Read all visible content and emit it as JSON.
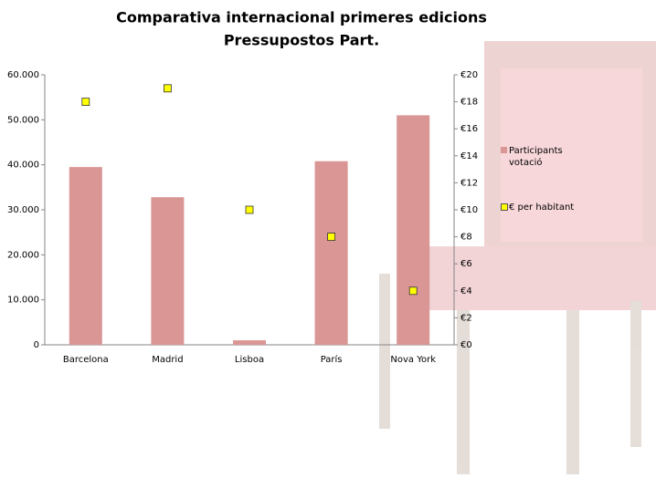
{
  "chart_data": {
    "type": "bar-marker",
    "title": [
      "Comparativa internacional primeres edicions",
      "Pressupostos Part."
    ],
    "categories": [
      "Barcelona",
      "Madrid",
      "Lisboa",
      "París",
      "Nova York"
    ],
    "series": [
      {
        "name": "Participants votació",
        "color": "#d99694",
        "values": [
          39500,
          32800,
          1000,
          40800,
          51000
        ]
      },
      {
        "name": "€ per habitant",
        "color": "#ffff00",
        "axis": "y2",
        "values": [
          18,
          19,
          10,
          8,
          4
        ]
      }
    ],
    "ylim": [
      0,
      60000
    ],
    "yticks": [
      0,
      {
        "value": 10000,
        "label": "10.000"
      },
      {
        "value": 20000,
        "label": "20.000"
      },
      {
        "value": 30000,
        "label": "30.000"
      },
      {
        "value": 40000,
        "label": "40.000"
      },
      {
        "value": 50000,
        "label": "50.000"
      },
      {
        "value": 60000,
        "label": "60.000"
      }
    ],
    "y2lim": [
      0,
      20
    ],
    "y2ticks": [
      {
        "value": 0,
        "label": "€0"
      },
      {
        "value": 2,
        "label": "€2"
      },
      {
        "value": 4,
        "label": "€4"
      },
      {
        "value": 6,
        "label": "€6"
      },
      {
        "value": 8,
        "label": "€8"
      },
      {
        "value": 10,
        "label": "€10"
      },
      {
        "value": 12,
        "label": "€12"
      },
      {
        "value": 14,
        "label": "€14"
      },
      {
        "value": 16,
        "label": "€16"
      },
      {
        "value": 18,
        "label": "€18"
      },
      {
        "value": 20,
        "label": "€20"
      }
    ]
  }
}
